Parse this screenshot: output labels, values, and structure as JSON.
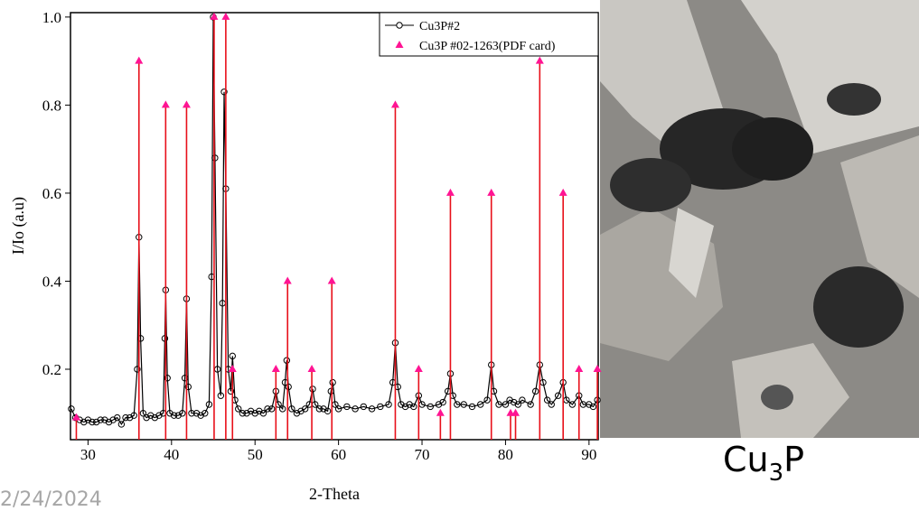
{
  "chart_data": {
    "type": "line",
    "y_label": "I/Io (a.u)",
    "x_label": "2-Theta",
    "xlim": [
      27.9,
      91.1
    ],
    "ylim": [
      0.04,
      1.01
    ],
    "xticks": [
      30,
      40,
      50,
      60,
      70,
      80,
      90
    ],
    "yticks": [
      0.2,
      0.4,
      0.6,
      0.8,
      {
        "value": 1,
        "label": "1.0"
      }
    ],
    "legend": "upper right",
    "series": [
      {
        "name": "Cu3P#2",
        "color": "#000000",
        "marker": "open-circle",
        "x": [
          28,
          28.5,
          29,
          29.5,
          30,
          30.5,
          31,
          31.5,
          32,
          32.5,
          33,
          33.5,
          34,
          34.5,
          35,
          35.5,
          35.9,
          36.1,
          36.3,
          36.6,
          37,
          37.5,
          38,
          38.5,
          39,
          39.2,
          39.3,
          39.5,
          39.8,
          40.3,
          40.8,
          41.3,
          41.6,
          41.8,
          42,
          42.4,
          43,
          43.5,
          44,
          44.5,
          44.8,
          45,
          45.2,
          45.5,
          45.9,
          46.1,
          46.3,
          46.5,
          46.8,
          47.1,
          47.3,
          47.6,
          48,
          48.5,
          49,
          49.5,
          50,
          50.5,
          51,
          51.5,
          52,
          52.5,
          52.8,
          53.3,
          53.6,
          53.8,
          54,
          54.4,
          55,
          55.5,
          56,
          56.5,
          56.9,
          57.2,
          57.7,
          58.2,
          58.7,
          59.1,
          59.3,
          59.6,
          60,
          61,
          62,
          63,
          64,
          65,
          66,
          66.5,
          66.8,
          67.1,
          67.5,
          68,
          68.5,
          69,
          69.6,
          70,
          71,
          72,
          72.5,
          73.1,
          73.4,
          73.7,
          74.2,
          75,
          76,
          77,
          77.8,
          78.3,
          78.6,
          79.2,
          80,
          80.5,
          81,
          81.5,
          82,
          83,
          83.6,
          84.1,
          84.5,
          85,
          85.5,
          86.3,
          86.9,
          87.3,
          88,
          88.8,
          89.3,
          90,
          90.5,
          91
        ],
        "values": [
          0.11,
          0.09,
          0.085,
          0.08,
          0.085,
          0.08,
          0.08,
          0.085,
          0.085,
          0.08,
          0.085,
          0.09,
          0.075,
          0.09,
          0.09,
          0.095,
          0.2,
          0.5,
          0.27,
          0.1,
          0.09,
          0.095,
          0.09,
          0.095,
          0.1,
          0.27,
          0.38,
          0.18,
          0.1,
          0.095,
          0.095,
          0.1,
          0.18,
          0.36,
          0.16,
          0.1,
          0.1,
          0.095,
          0.1,
          0.12,
          0.41,
          1.0,
          0.68,
          0.2,
          0.14,
          0.35,
          0.83,
          0.61,
          0.2,
          0.15,
          0.23,
          0.13,
          0.11,
          0.1,
          0.1,
          0.105,
          0.1,
          0.105,
          0.1,
          0.11,
          0.11,
          0.15,
          0.12,
          0.11,
          0.17,
          0.22,
          0.16,
          0.11,
          0.1,
          0.105,
          0.11,
          0.12,
          0.155,
          0.12,
          0.11,
          0.11,
          0.105,
          0.15,
          0.17,
          0.12,
          0.11,
          0.115,
          0.11,
          0.115,
          0.11,
          0.115,
          0.12,
          0.17,
          0.26,
          0.16,
          0.12,
          0.115,
          0.12,
          0.115,
          0.14,
          0.12,
          0.115,
          0.12,
          0.125,
          0.15,
          0.19,
          0.14,
          0.12,
          0.12,
          0.115,
          0.12,
          0.13,
          0.21,
          0.15,
          0.12,
          0.12,
          0.13,
          0.125,
          0.12,
          0.13,
          0.12,
          0.15,
          0.21,
          0.17,
          0.13,
          0.12,
          0.14,
          0.17,
          0.13,
          0.12,
          0.14,
          0.12,
          0.12,
          0.115,
          0.13
        ]
      },
      {
        "name": "Cu3P #02-1263(PDF card)",
        "color": "#ff1493",
        "stem_color": "#e8101a",
        "marker": "triangle",
        "x": [
          28.6,
          36.1,
          39.3,
          41.8,
          45.1,
          46.5,
          47.3,
          52.5,
          53.9,
          56.8,
          59.2,
          66.8,
          69.6,
          72.2,
          73.4,
          78.3,
          80.6,
          81.2,
          84.1,
          86.9,
          88.8,
          91.0
        ],
        "values": [
          0.09,
          0.9,
          0.8,
          0.8,
          1.0,
          1.0,
          0.2,
          0.2,
          0.4,
          0.2,
          0.4,
          0.8,
          0.2,
          0.1,
          0.6,
          0.6,
          0.1,
          0.1,
          0.9,
          0.6,
          0.2,
          0.2
        ]
      }
    ]
  },
  "photo_caption": {
    "base": "Cu",
    "sub": "3",
    "end": "P"
  },
  "date": "2/24/2024"
}
